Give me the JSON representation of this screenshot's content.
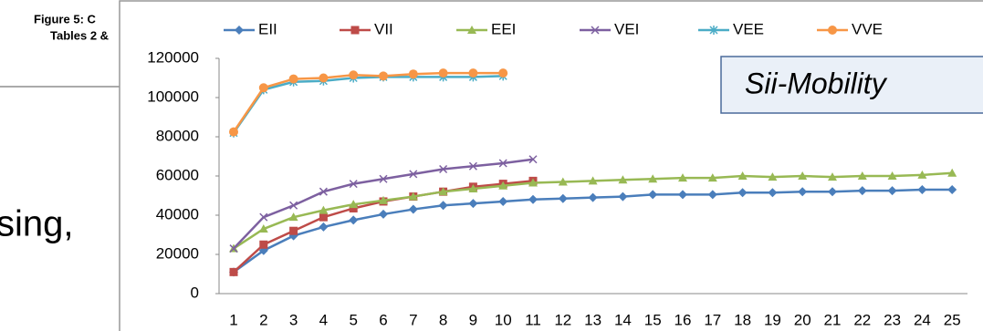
{
  "background": {
    "caption_line_1": "Figure 5: C",
    "caption_line_2": "Tables 2 &",
    "body_text": "sing,"
  },
  "chart_data": {
    "type": "line",
    "annotation": "Sii-Mobility",
    "categories": [
      "1",
      "2",
      "3",
      "4",
      "5",
      "6",
      "7",
      "8",
      "9",
      "10",
      "11",
      "12",
      "13",
      "14",
      "15",
      "16",
      "17",
      "18",
      "19",
      "20",
      "21",
      "22",
      "23",
      "24",
      "25"
    ],
    "ylim": [
      0,
      120000
    ],
    "yticks": [
      0,
      20000,
      40000,
      60000,
      80000,
      100000,
      120000
    ],
    "grid": false,
    "legend": "top",
    "series": [
      {
        "name": "EII",
        "color": "#4a7ebb",
        "marker": "diamond",
        "values": [
          11000,
          22000,
          29500,
          34000,
          37500,
          40500,
          43000,
          45000,
          46000,
          47000,
          48000,
          48500,
          49000,
          49500,
          50500,
          50500,
          50500,
          51500,
          51500,
          52000,
          52000,
          52500,
          52500,
          53000,
          53000
        ]
      },
      {
        "name": "VII",
        "color": "#be4b48",
        "marker": "square",
        "values": [
          11000,
          25000,
          32000,
          39000,
          43500,
          47000,
          49500,
          52000,
          54500,
          56000,
          57500,
          null,
          null,
          null,
          null,
          null,
          null,
          null,
          null,
          null,
          null,
          null,
          null,
          null,
          null
        ]
      },
      {
        "name": "EEI",
        "color": "#98b954",
        "marker": "triangle",
        "values": [
          23000,
          33000,
          39000,
          42500,
          45500,
          47500,
          49500,
          52000,
          53500,
          55000,
          56500,
          57000,
          57500,
          58000,
          58500,
          59000,
          59000,
          60000,
          59500,
          60000,
          59500,
          60000,
          60000,
          60500,
          61500
        ]
      },
      {
        "name": "VEI",
        "color": "#7d60a0",
        "marker": "x",
        "values": [
          23000,
          39000,
          45000,
          52000,
          56000,
          58500,
          61000,
          63500,
          65000,
          66500,
          68500,
          null,
          null,
          null,
          null,
          null,
          null,
          null,
          null,
          null,
          null,
          null,
          null,
          null,
          null
        ]
      },
      {
        "name": "VEE",
        "color": "#4bacc6",
        "marker": "asterisk",
        "values": [
          82000,
          104000,
          108000,
          108500,
          110000,
          110500,
          110500,
          110500,
          110500,
          111000,
          null,
          null,
          null,
          null,
          null,
          null,
          null,
          null,
          null,
          null,
          null,
          null,
          null,
          null,
          null
        ]
      },
      {
        "name": "VVE",
        "color": "#f79646",
        "marker": "circle",
        "values": [
          82500,
          105000,
          109500,
          110000,
          111500,
          111000,
          112000,
          112500,
          112500,
          112500,
          null,
          null,
          null,
          null,
          null,
          null,
          null,
          null,
          null,
          null,
          null,
          null,
          null,
          null,
          null
        ]
      }
    ]
  }
}
